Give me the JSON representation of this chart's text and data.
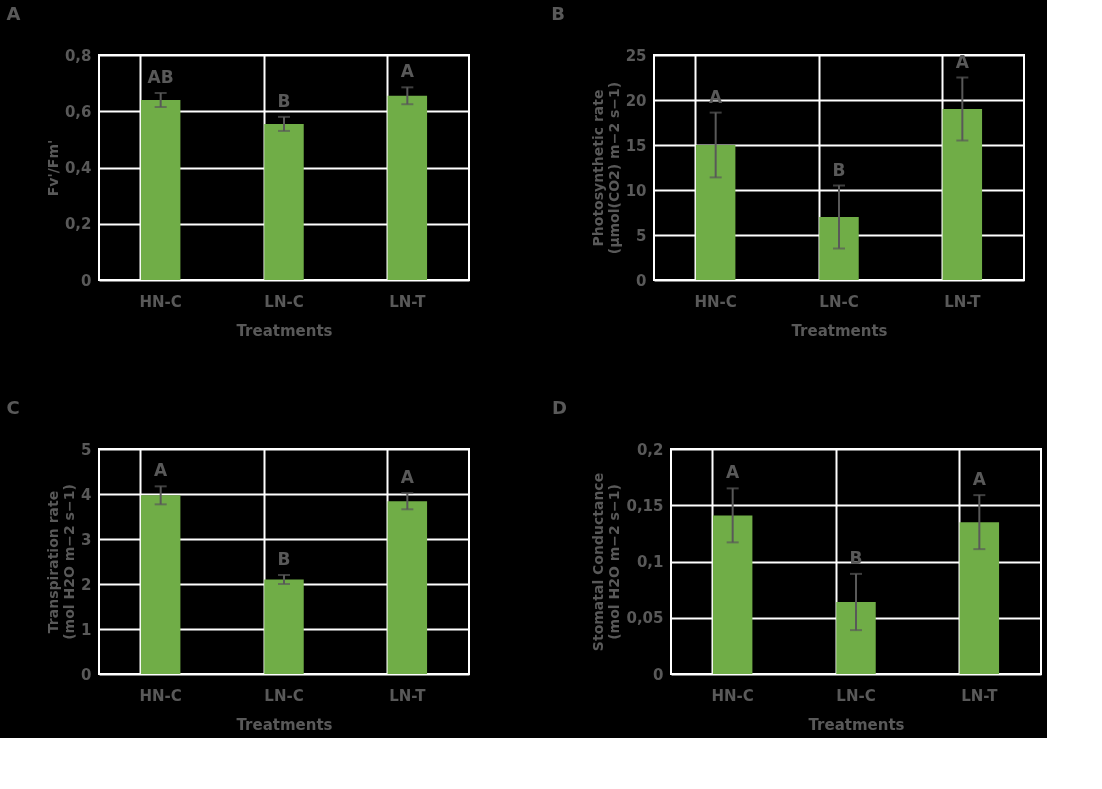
{
  "chart_data": [
    {
      "type": "bar",
      "title": "A",
      "xlabel": "Treatments",
      "ylabel": "Fv'/Fm'",
      "categories": [
        "HN-C",
        "LN-C",
        "LN-T"
      ],
      "values": [
        0.64,
        0.555,
        0.655
      ],
      "errors": [
        0.025,
        0.025,
        0.03
      ],
      "color": "#70ad47",
      "ylim": [
        0,
        0.8
      ],
      "yticks": [
        0,
        {
          "value": 0.2,
          "label": "0,2"
        },
        {
          "value": 0.4,
          "label": "0,4"
        },
        {
          "value": 0.6,
          "label": "0,6"
        },
        {
          "value": 0.8,
          "label": "0,8"
        }
      ],
      "grid": true,
      "annotations": [
        "AB",
        "B",
        "A"
      ]
    },
    {
      "type": "bar",
      "title": "B",
      "xlabel": "Treatments",
      "ylabel": "Photosynthetic rate\n(µmol(CO2) m−2 s−1)",
      "categories": [
        "HN-C",
        "LN-C",
        "LN-T"
      ],
      "values": [
        15.0,
        7.0,
        19.0
      ],
      "errors": [
        3.6,
        3.5,
        3.5
      ],
      "color": "#70ad47",
      "ylim": [
        0,
        25
      ],
      "yticks": [
        0,
        5,
        10,
        15,
        20,
        25
      ],
      "grid": true,
      "annotations": [
        "A",
        "B",
        "A"
      ]
    },
    {
      "type": "bar",
      "title": "C",
      "xlabel": "Treatments",
      "ylabel": "Transpiration rate\n(mol H2O m−2 s−1)",
      "categories": [
        "HN-C",
        "LN-C",
        "LN-T"
      ],
      "values": [
        3.97,
        2.1,
        3.84
      ],
      "errors": [
        0.2,
        0.1,
        0.18
      ],
      "color": "#70ad47",
      "ylim": [
        0,
        5
      ],
      "yticks": [
        0,
        1,
        2,
        3,
        4,
        5
      ],
      "grid": true,
      "annotations": [
        "A",
        "B",
        "A"
      ]
    },
    {
      "type": "bar",
      "title": "D",
      "xlabel": "Treatments",
      "ylabel": "Stomatal Conductance\n(mol H2O m−2 s−1)",
      "categories": [
        "HN-C",
        "LN-C",
        "LN-T"
      ],
      "values": [
        0.141,
        0.064,
        0.135
      ],
      "errors": [
        0.024,
        0.025,
        0.024
      ],
      "color": "#70ad47",
      "ylim": [
        0,
        0.2
      ],
      "yticks": [
        0,
        {
          "value": 0.05,
          "label": "0,05"
        },
        {
          "value": 0.1,
          "label": "0,1"
        },
        {
          "value": 0.15,
          "label": "0,15"
        },
        {
          "value": 0.2,
          "label": "0,2"
        }
      ],
      "grid": true,
      "annotations": [
        "A",
        "B",
        "A"
      ]
    }
  ]
}
